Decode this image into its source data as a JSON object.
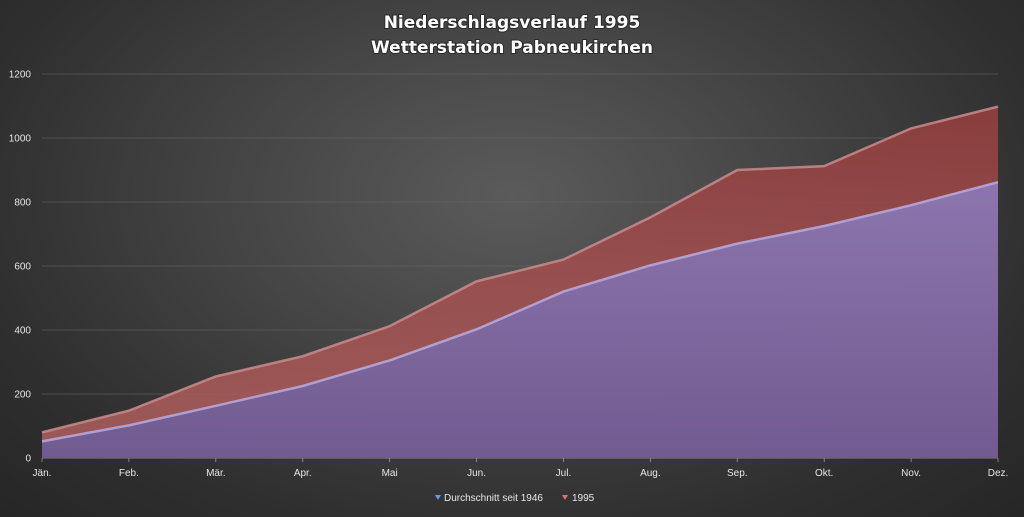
{
  "chart_data": {
    "type": "area",
    "title_line1": "Niederschlagsverlauf 1995",
    "title_line2": "Wetterstation Pabneukirchen",
    "categories": [
      "Jän.",
      "Feb.",
      "Mär.",
      "Apr.",
      "Mai",
      "Jun.",
      "Jul.",
      "Aug.",
      "Sep.",
      "Okt.",
      "Nov.",
      "Dez."
    ],
    "yticks": [
      "0",
      "200",
      "400",
      "600",
      "800",
      "1000",
      "1200"
    ],
    "ylim": [
      0,
      1200
    ],
    "grid": true,
    "legend_position": "bottom",
    "series": [
      {
        "name": "Durchschnitt seit 1946",
        "color": "#8a72b0",
        "values": [
          52,
          102,
          163,
          225,
          305,
          402,
          520,
          602,
          670,
          725,
          790,
          862
        ]
      },
      {
        "name": "1995",
        "color": "#8b3b3b",
        "values": [
          80,
          148,
          255,
          318,
          412,
          552,
          620,
          752,
          900,
          912,
          1030,
          1098
        ]
      }
    ]
  }
}
